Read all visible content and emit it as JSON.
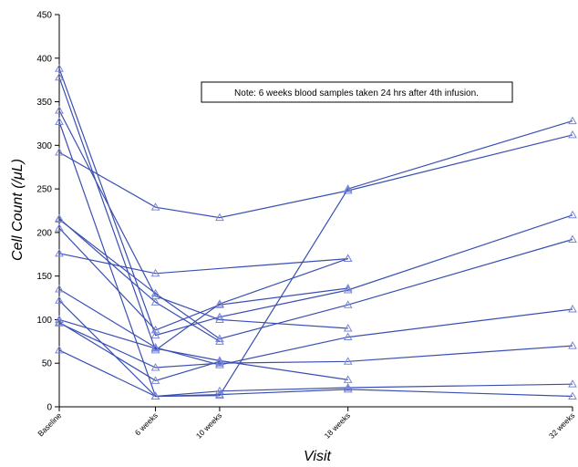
{
  "chart_data": {
    "type": "line",
    "title": "",
    "xlabel": "Visit",
    "ylabel": "Cell Count (/μL)",
    "ylim": [
      0,
      450
    ],
    "yticks": [
      0,
      50,
      100,
      150,
      200,
      250,
      300,
      350,
      400,
      450
    ],
    "x": [
      {
        "label": "Baseline",
        "week": 0
      },
      {
        "label": "6 weeks",
        "week": 6
      },
      {
        "label": "10 weeks",
        "week": 10
      },
      {
        "label": "18 weeks",
        "week": 18
      },
      {
        "label": "32 weeks",
        "week": 32
      }
    ],
    "annotation": "Note: 6 weeks blood samples taken 24 hrs after 4th infusion.",
    "marker": "triangle",
    "color": "#3a4fb3",
    "grid": false,
    "legend": "none",
    "series": [
      {
        "values": [
          292,
          229,
          217,
          248,
          312
        ]
      },
      {
        "values": [
          388,
          82,
          103,
          134,
          220
        ]
      },
      {
        "values": [
          378,
          65,
          118,
          170,
          null
        ]
      },
      {
        "values": [
          340,
          127,
          100,
          90,
          null
        ]
      },
      {
        "values": [
          327,
          12,
          13,
          250,
          328
        ]
      },
      {
        "values": [
          215,
          130,
          78,
          117,
          192
        ]
      },
      {
        "values": [
          216,
          120,
          75,
          null,
          null
        ]
      },
      {
        "values": [
          205,
          88,
          117,
          136,
          null
        ]
      },
      {
        "values": [
          176,
          153,
          null,
          170,
          null
        ]
      },
      {
        "values": [
          135,
          68,
          48,
          80,
          112
        ]
      },
      {
        "values": [
          122,
          12,
          18,
          22,
          26
        ]
      },
      {
        "values": [
          100,
          67,
          53,
          31,
          null
        ]
      },
      {
        "values": [
          96,
          45,
          50,
          52,
          70
        ]
      },
      {
        "values": [
          97,
          30,
          52,
          null,
          null
        ]
      },
      {
        "values": [
          65,
          12,
          14,
          20,
          12
        ]
      }
    ]
  }
}
